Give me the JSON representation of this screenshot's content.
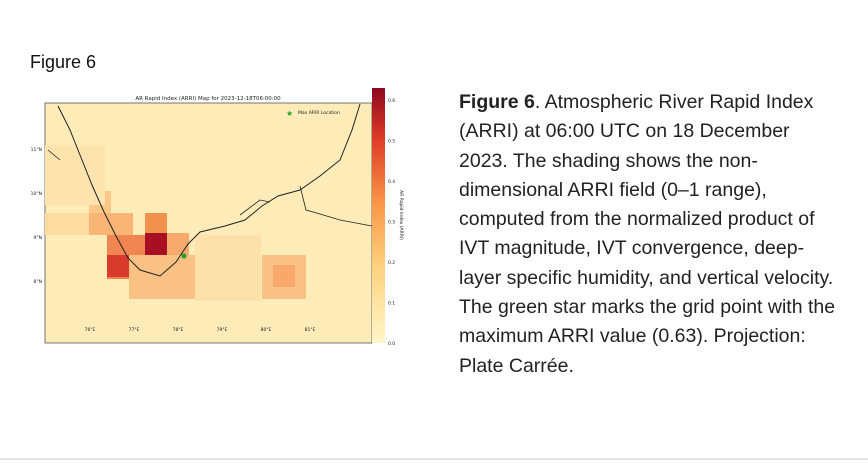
{
  "heading": "Figure 6",
  "figure": {
    "title": "AR Rapid Index (ARRI) Map for 2023-12-18T06:00:00",
    "legend": "Max ARRI Location",
    "colorbar_label": "AR Rapid Index (ARRI)",
    "colorbar_ticks": [
      "0.0",
      "0.1",
      "0.2",
      "0.3",
      "0.4",
      "0.5",
      "0.6"
    ],
    "lat_labels": [
      "11°N",
      "10°N",
      "9°N",
      "8°N"
    ],
    "lon_labels": [
      "76°E",
      "77°E",
      "78°E",
      "79°E",
      "80°E",
      "81°E"
    ]
  },
  "caption": {
    "label": "Figure 6",
    "text": ". Atmospheric River Rapid Index (ARRI) at 06:00 UTC on 18 December 2023. The shading shows the non-dimensional ARRI field (0–1 range), computed from the normalized product of IVT magnitude, IVT convergence, deep-layer specific humidity, and vertical velocity. The green star marks the grid point with the maximum ARRI value (0.63). Projection: Plate Carrée."
  }
}
